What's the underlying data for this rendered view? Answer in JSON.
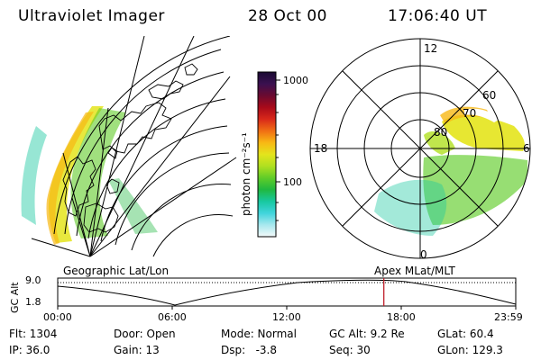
{
  "header": {
    "instrument": "Ultraviolet Imager",
    "date": "28 Oct 00",
    "time": "17:06:40 UT"
  },
  "colorbar": {
    "unit": "photon cm⁻²s⁻¹",
    "ticks": [
      "1000",
      "100"
    ],
    "colors": [
      "#1a0a33",
      "#3a1050",
      "#6a0a30",
      "#a80a1a",
      "#d8281a",
      "#f06e14",
      "#f8b814",
      "#e4e41c",
      "#b0e020",
      "#60cc28",
      "#20b840",
      "#18c8a0",
      "#40d4dc",
      "#a8e8ee",
      "#f4fafa"
    ]
  },
  "left_panel": {
    "title": "Geographic Lat/Lon"
  },
  "right_panel": {
    "title": "Apex MLat/MLT",
    "mlt_labels": {
      "top": "12",
      "left": "18",
      "right": "6",
      "bottom": "0"
    },
    "mlat_labels": [
      "80",
      "70",
      "60"
    ]
  },
  "altitude_plot": {
    "ylabel": "GC Alt",
    "yticks": [
      "9.0",
      "1.8"
    ],
    "xticks": [
      "00:00",
      "06:00",
      "12:00",
      "18:00",
      "23:59"
    ],
    "current_time_fraction": 0.712
  },
  "info": {
    "flt": "Flt: 1304",
    "ip": "IP: 36.0",
    "door": "Door: Open",
    "gain": "Gain: 13",
    "mode": "Mode: Normal",
    "dsp": "Dsp:   -3.8",
    "gcalt": "GC Alt: 9.2 Re",
    "seq": "Seq: 30",
    "glat": "GLat: 60.4",
    "glon": "GLon: 129.3"
  }
}
